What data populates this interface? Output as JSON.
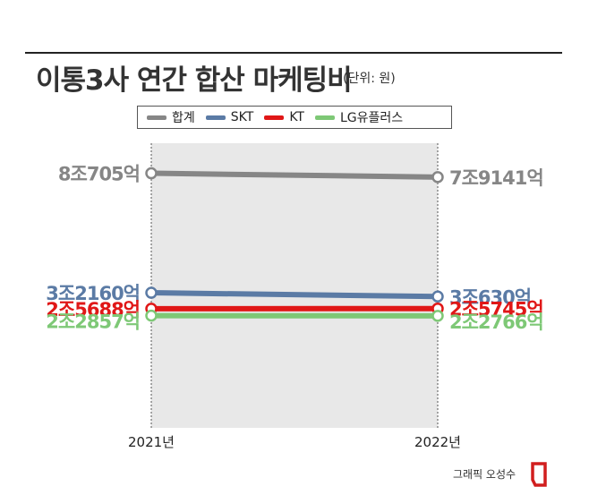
{
  "title": "이통3사 연간 합산 마케팅비",
  "unit": "(단위: 원)",
  "credit": "그래픽 오성수",
  "chart_data": {
    "type": "line",
    "categories": [
      "2021년",
      "2022년"
    ],
    "ylim": [
      0,
      90000
    ],
    "series": [
      {
        "name": "합계",
        "color": "#868686",
        "values": [
          80705,
          79141
        ],
        "labels": [
          "8조705억",
          "7조9141억"
        ]
      },
      {
        "name": "SKT",
        "color": "#5b7ba5",
        "values": [
          32160,
          30630
        ],
        "labels": [
          "3조2160억",
          "3조630억"
        ]
      },
      {
        "name": "KT",
        "color": "#e01717",
        "values": [
          25688,
          25745
        ],
        "labels": [
          "2조5688억",
          "2조5745억"
        ]
      },
      {
        "name": "LG유플러스",
        "color": "#7ec876",
        "values": [
          22857,
          22766
        ],
        "labels": [
          "2조2857억",
          "2조2766억"
        ]
      }
    ]
  }
}
